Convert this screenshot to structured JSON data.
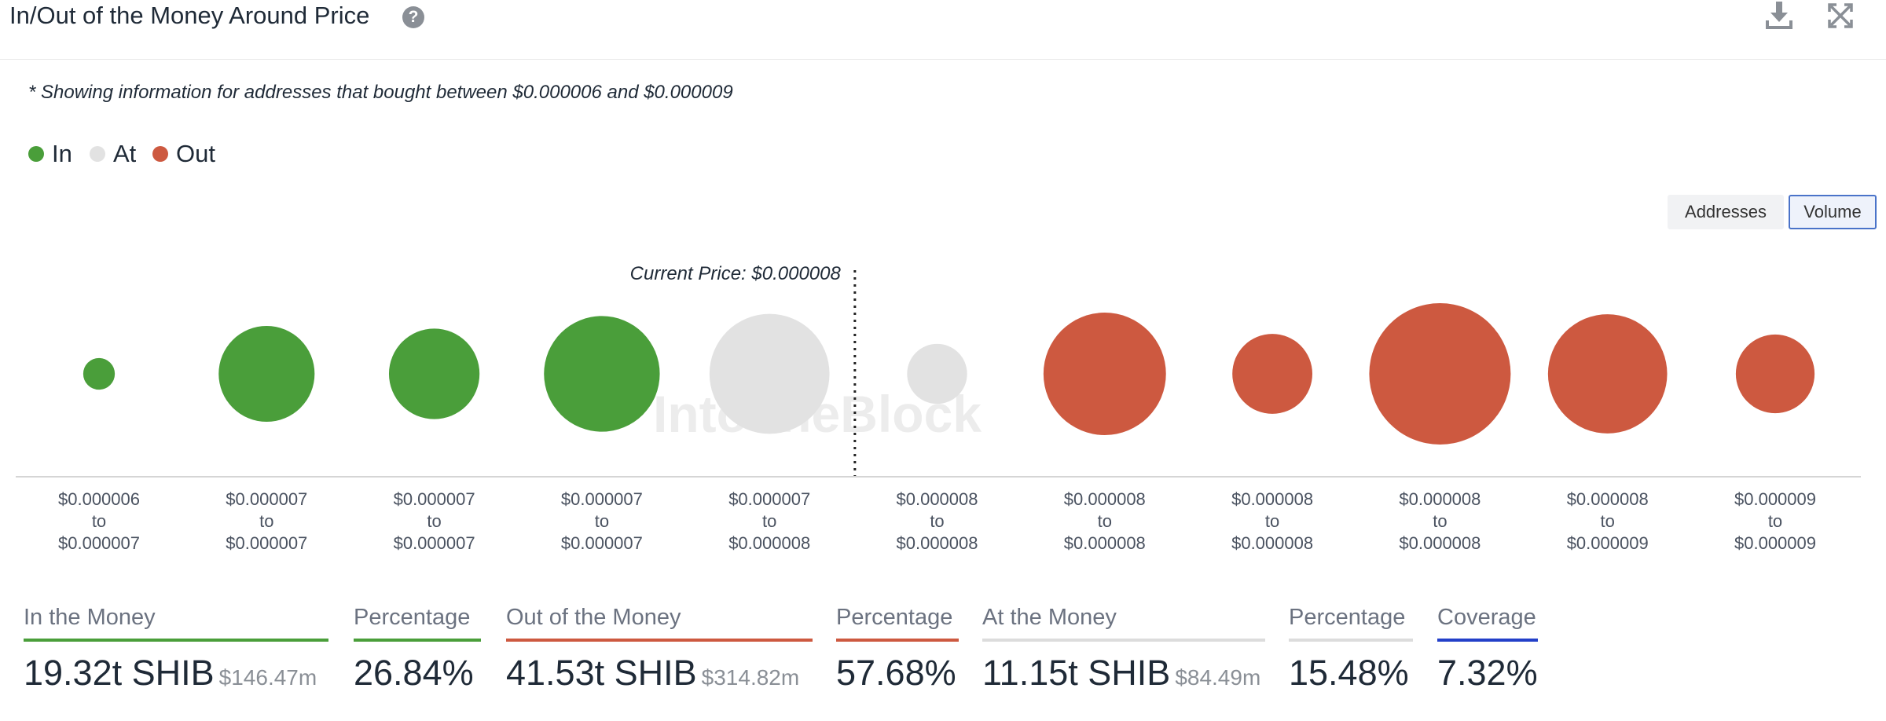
{
  "header": {
    "title": "In/Out of the Money Around Price",
    "help_icon": "question-circle-icon",
    "download_icon": "download-icon",
    "expand_icon": "expand-icon"
  },
  "note": "* Showing information for addresses that bought between $0.000006 and $0.000009",
  "legend": [
    {
      "label": "In",
      "color": "#4a9e3a"
    },
    {
      "label": "At",
      "color": "#e2e2e2"
    },
    {
      "label": "Out",
      "color": "#cd5940"
    }
  ],
  "toggle": {
    "addresses_label": "Addresses",
    "volume_label": "Volume",
    "selected": "Volume"
  },
  "chart_data": {
    "type": "bubble",
    "current_price_label": "Current Price: $0.000008",
    "current_price_after_index": 4,
    "watermark": "IntoTheBlock",
    "colors": {
      "in": "#4a9e3a",
      "at": "#e2e2e2",
      "out": "#cd5940"
    },
    "series": [
      {
        "range_low": "$0.000006",
        "range_high": "$0.000007",
        "status": "in",
        "relative_volume": 0.05
      },
      {
        "range_low": "$0.000007",
        "range_high": "$0.000007",
        "status": "in",
        "relative_volume": 0.46
      },
      {
        "range_low": "$0.000007",
        "range_high": "$0.000007",
        "status": "in",
        "relative_volume": 0.41
      },
      {
        "range_low": "$0.000007",
        "range_high": "$0.000007",
        "status": "in",
        "relative_volume": 0.67
      },
      {
        "range_low": "$0.000007",
        "range_high": "$0.000008",
        "status": "at",
        "relative_volume": 0.72
      },
      {
        "range_low": "$0.000008",
        "range_high": "$0.000008",
        "status": "at",
        "relative_volume": 0.18
      },
      {
        "range_low": "$0.000008",
        "range_high": "$0.000008",
        "status": "out",
        "relative_volume": 0.75
      },
      {
        "range_low": "$0.000008",
        "range_high": "$0.000008",
        "status": "out",
        "relative_volume": 0.32
      },
      {
        "range_low": "$0.000008",
        "range_high": "$0.000008",
        "status": "out",
        "relative_volume": 1.0
      },
      {
        "range_low": "$0.000008",
        "range_high": "$0.000009",
        "status": "out",
        "relative_volume": 0.71
      },
      {
        "range_low": "$0.000009",
        "range_high": "$0.000009",
        "status": "out",
        "relative_volume": 0.31
      }
    ],
    "to_word": "to"
  },
  "stats": {
    "in_label": "In the Money",
    "in_value": "19.32t SHIB",
    "in_usd": "$146.47m",
    "in_pct_label": "Percentage",
    "in_pct": "26.84%",
    "out_label": "Out of the Money",
    "out_value": "41.53t SHIB",
    "out_usd": "$314.82m",
    "out_pct_label": "Percentage",
    "out_pct": "57.68%",
    "at_label": "At the Money",
    "at_value": "11.15t SHIB",
    "at_usd": "$84.49m",
    "at_pct_label": "Percentage",
    "at_pct": "15.48%",
    "coverage_label": "Coverage",
    "coverage": "7.32%",
    "colors": {
      "in": "#4a9e3a",
      "out": "#cd5940",
      "at": "#dcdcdc",
      "coverage": "#2340c9"
    }
  }
}
